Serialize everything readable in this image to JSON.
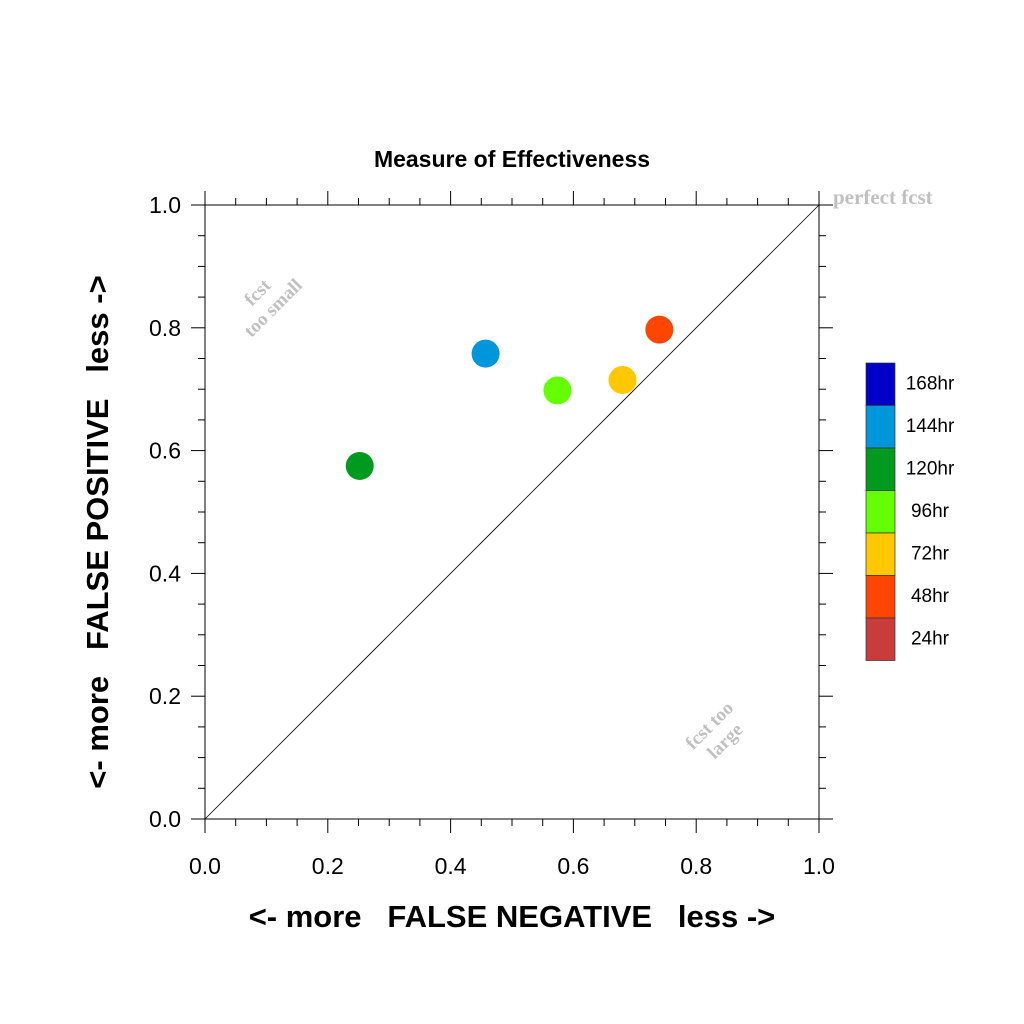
{
  "chart_data": {
    "type": "scatter",
    "title": "Measure of Effectiveness",
    "xlabel": "<- more   FALSE NEGATIVE   less ->",
    "ylabel": "<- more   FALSE POSITIVE   less ->",
    "xlim": [
      0.0,
      1.0
    ],
    "ylim": [
      0.0,
      1.0
    ],
    "xticks": [
      "0.0",
      "0.2",
      "0.4",
      "0.6",
      "0.8",
      "1.0"
    ],
    "yticks": [
      "0.0",
      "0.2",
      "0.4",
      "0.6",
      "0.8",
      "1.0"
    ],
    "grid": false,
    "diagonal_line": true,
    "annotations": {
      "perfect": "perfect fcst",
      "too_small_line1": "fcst",
      "too_small_line2": "too small",
      "too_large_line1": "fcst too",
      "too_large_line2": "large"
    },
    "legend_placement": "right",
    "legend": [
      {
        "label": "168hr",
        "color": "#0000c8"
      },
      {
        "label": "144hr",
        "color": "#0096dc"
      },
      {
        "label": "120hr",
        "color": "#009b1e"
      },
      {
        "label": "96hr",
        "color": "#64ff00"
      },
      {
        "label": "72hr",
        "color": "#ffc800"
      },
      {
        "label": "48hr",
        "color": "#ff4600"
      },
      {
        "label": "24hr",
        "color": "#c83c3c"
      }
    ],
    "series": [
      {
        "name": "144hr",
        "x": 0.457,
        "y": 0.758,
        "color": "#0096dc"
      },
      {
        "name": "120hr",
        "x": 0.252,
        "y": 0.575,
        "color": "#009b1e"
      },
      {
        "name": "96hr",
        "x": 0.574,
        "y": 0.698,
        "color": "#64ff00"
      },
      {
        "name": "72hr",
        "x": 0.68,
        "y": 0.715,
        "color": "#ffc800"
      },
      {
        "name": "48hr",
        "x": 0.74,
        "y": 0.797,
        "color": "#ff4600"
      }
    ]
  }
}
